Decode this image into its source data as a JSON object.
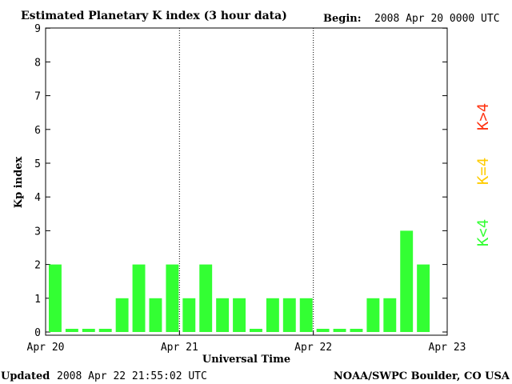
{
  "header": {
    "title": "Estimated Planetary K index (3 hour data)",
    "begin_label": "Begin:",
    "begin_value": "2008 Apr 20 0000 UTC"
  },
  "footer": {
    "updated_label": "Updated",
    "updated_value": "2008 Apr 22 21:55:02 UTC",
    "credit": "NOAA/SWPC Boulder, CO USA"
  },
  "legend": {
    "above_four": "K>4",
    "equal_four": "K=4",
    "below_four": "K<4"
  },
  "colors": {
    "bar": "#33ff33",
    "above_four": "#ff3311",
    "equal_four": "#ffcc00",
    "below_four": "#33ff33",
    "axis": "#000000"
  },
  "chart_data": {
    "type": "bar",
    "title": "Estimated Planetary K index (3 hour data)",
    "xlabel": "Universal Time",
    "ylabel": "Kp index",
    "ylim": [
      0,
      9
    ],
    "yticks": [
      0,
      1,
      2,
      3,
      4,
      5,
      6,
      7,
      8,
      9
    ],
    "x_ticks": [
      "Apr 20",
      "Apr 21",
      "Apr 22",
      "Apr 23"
    ],
    "interval_hours": 3,
    "values": [
      2,
      0,
      0,
      0,
      1,
      2,
      1,
      2,
      1,
      2,
      1,
      1,
      0,
      1,
      1,
      1,
      0,
      0,
      0,
      1,
      1,
      3,
      2
    ],
    "day_separators": [
      "Apr 21",
      "Apr 22"
    ],
    "grid": false
  }
}
